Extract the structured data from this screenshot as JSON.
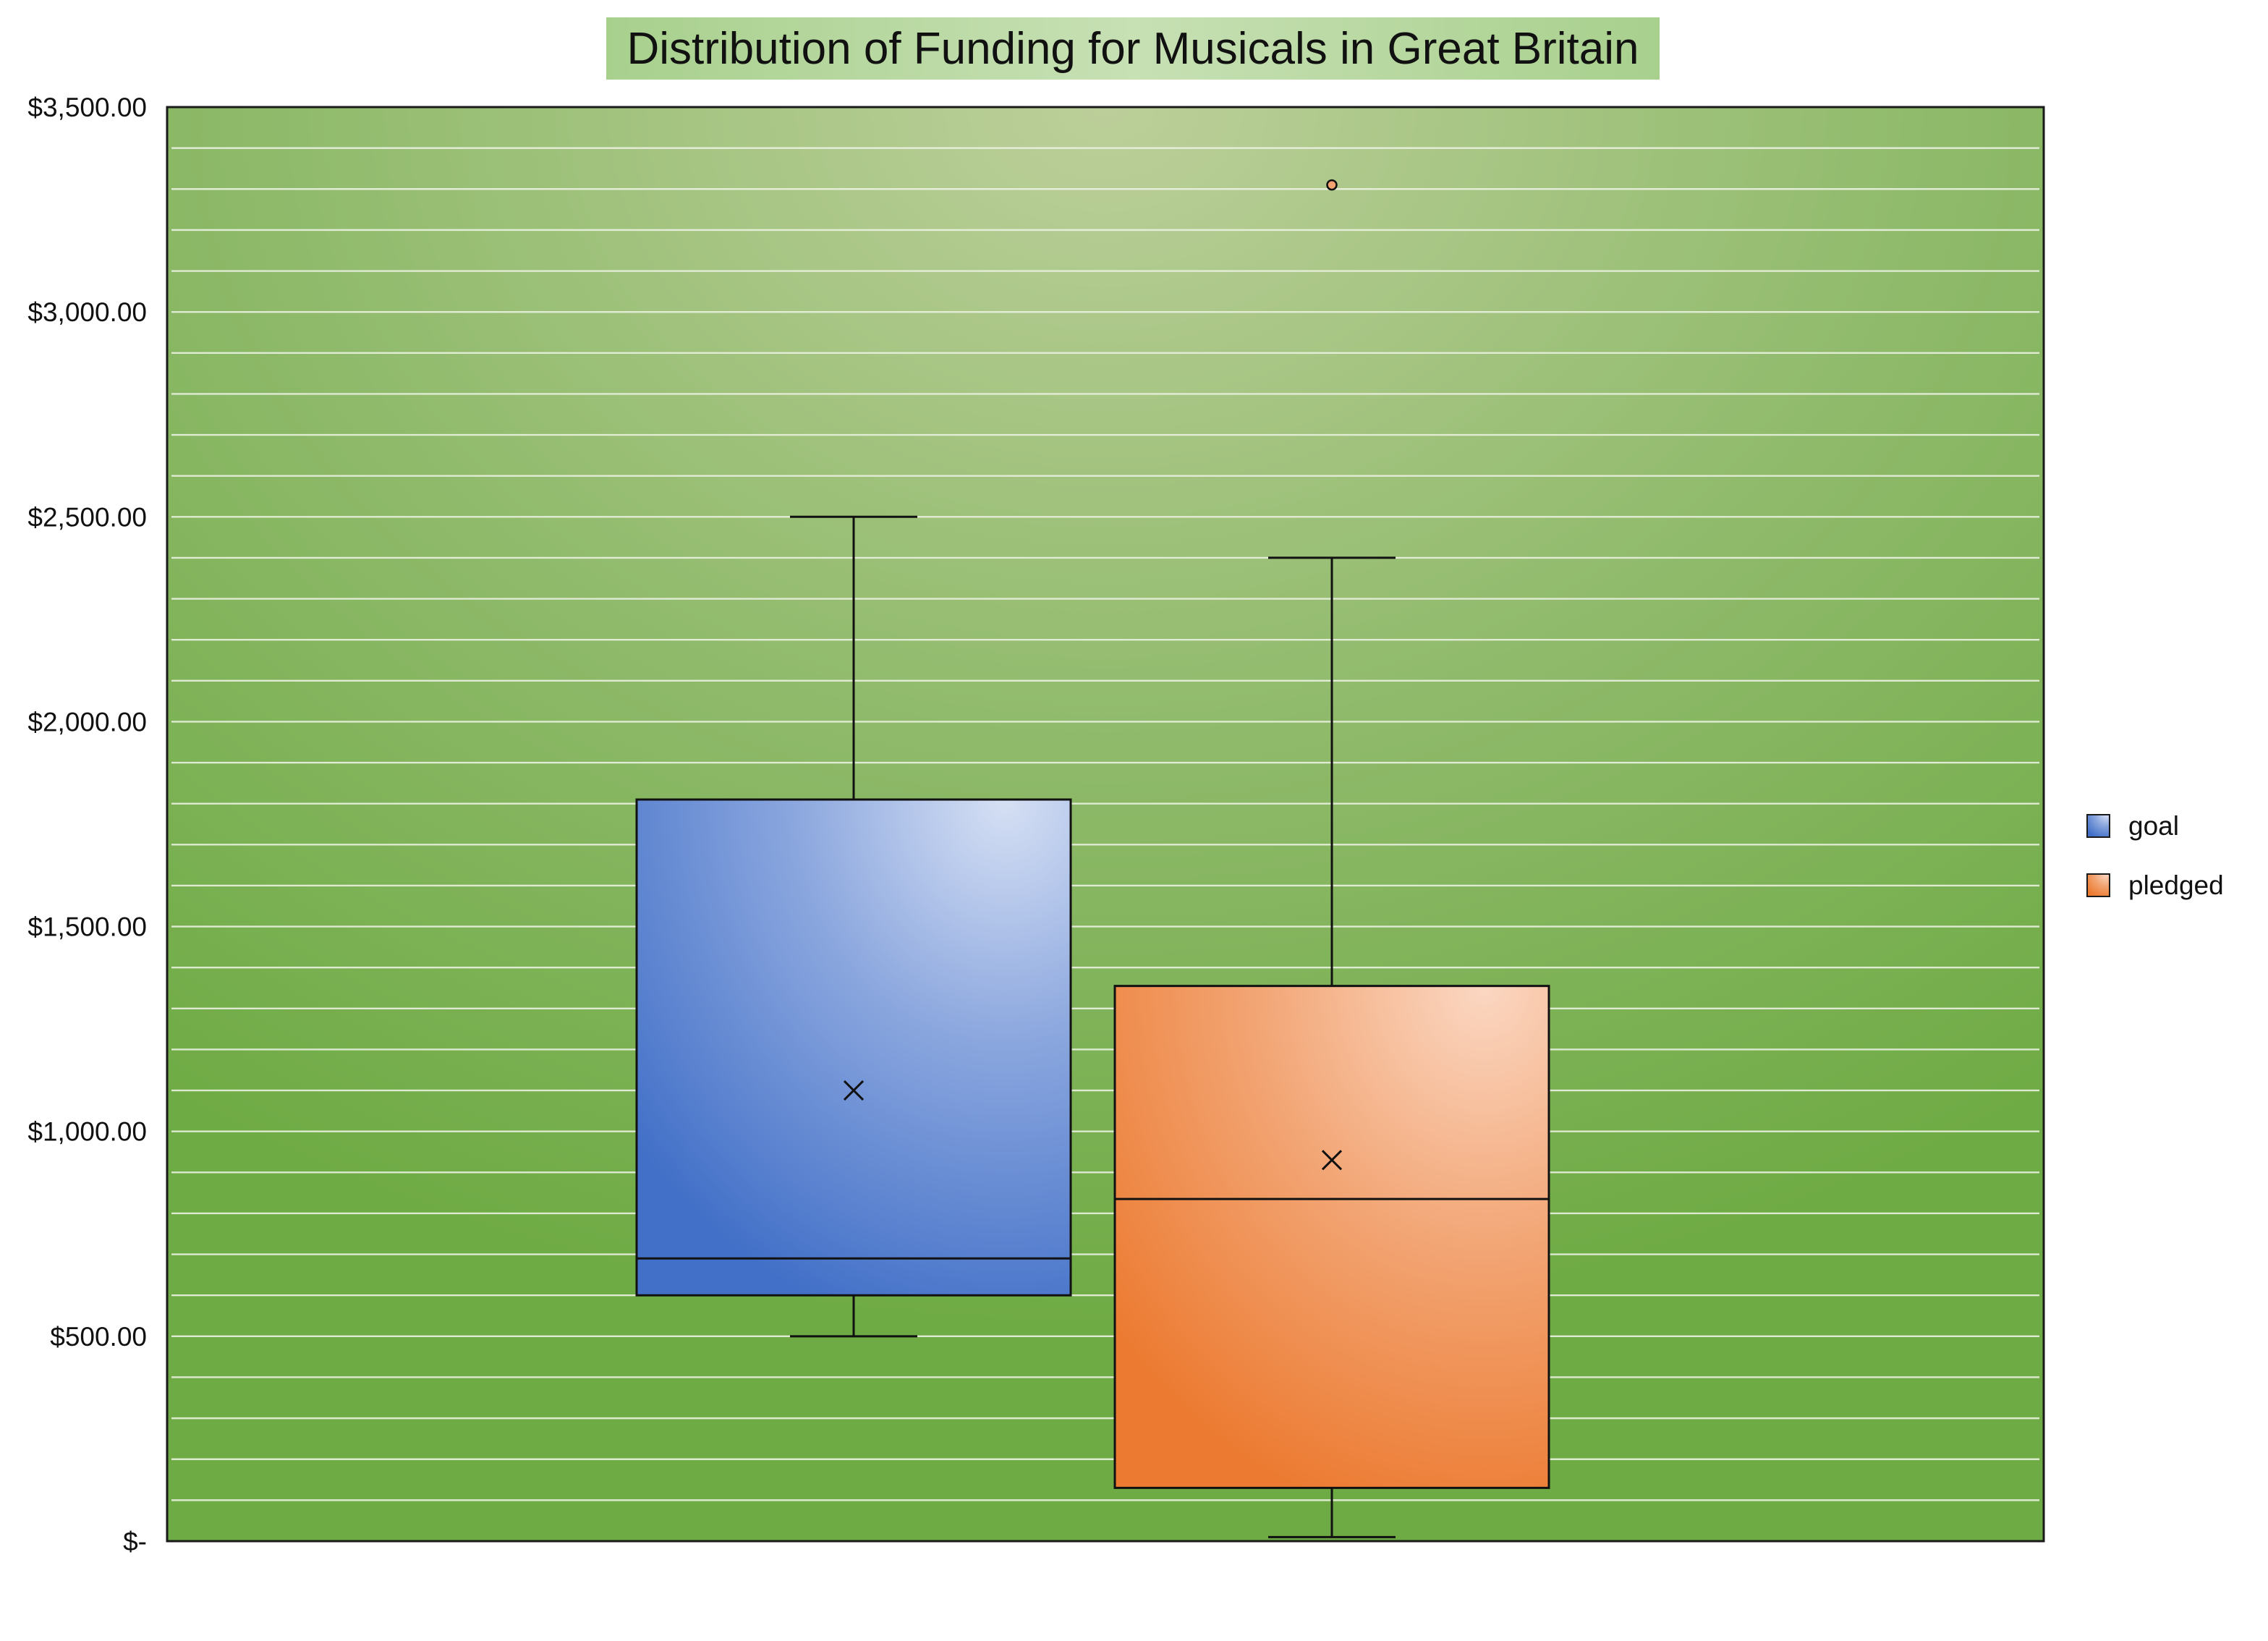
{
  "chart_data": {
    "type": "boxplot",
    "title": "Distribution of Funding for Musicals in Great Britain",
    "xlabel": "",
    "ylabel": "",
    "ylim": [
      0,
      3500
    ],
    "y_ticks": [
      0,
      500,
      1000,
      1500,
      2000,
      2500,
      3000,
      3500
    ],
    "y_tick_labels": [
      "$-",
      "$500.00",
      "$1,000.00",
      "$1,500.00",
      "$2,000.00",
      "$2,500.00",
      "$3,000.00",
      "$3,500.00"
    ],
    "grid": true,
    "legend_position": "right",
    "series": [
      {
        "name": "goal",
        "color": "#4472C4",
        "min": 500,
        "q1": 600,
        "median": 690,
        "q3": 1810,
        "max": 2500,
        "mean": 1100,
        "outliers": []
      },
      {
        "name": "pledged",
        "color": "#ED7D31",
        "min": 10,
        "q1": 130,
        "median": 835,
        "q3": 1355,
        "max": 2400,
        "mean": 930,
        "outliers": [
          3310
        ]
      }
    ]
  }
}
